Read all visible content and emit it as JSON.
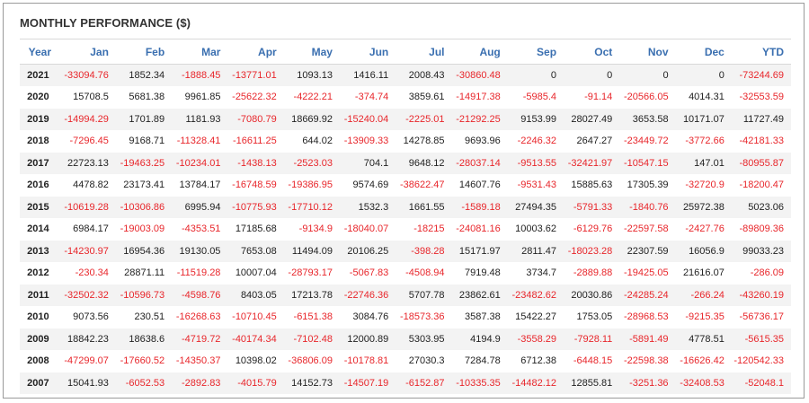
{
  "title": "MONTHLY PERFORMANCE ($)",
  "colors": {
    "header": "#3a6fb0",
    "negative": "#e8262b",
    "stripe": "#f3f3f3"
  },
  "columns": [
    "Year",
    "Jan",
    "Feb",
    "Mar",
    "Apr",
    "May",
    "Jun",
    "Jul",
    "Aug",
    "Sep",
    "Oct",
    "Nov",
    "Dec",
    "YTD"
  ],
  "rows": [
    [
      "2021",
      "-33094.76",
      "1852.34",
      "-1888.45",
      "-13771.01",
      "1093.13",
      "1416.11",
      "2008.43",
      "-30860.48",
      "0",
      "0",
      "0",
      "0",
      "-73244.69"
    ],
    [
      "2020",
      "15708.5",
      "5681.38",
      "9961.85",
      "-25622.32",
      "-4222.21",
      "-374.74",
      "3859.61",
      "-14917.38",
      "-5985.4",
      "-91.14",
      "-20566.05",
      "4014.31",
      "-32553.59"
    ],
    [
      "2019",
      "-14994.29",
      "1701.89",
      "1181.93",
      "-7080.79",
      "18669.92",
      "-15240.04",
      "-2225.01",
      "-21292.25",
      "9153.99",
      "28027.49",
      "3653.58",
      "10171.07",
      "11727.49"
    ],
    [
      "2018",
      "-7296.45",
      "9168.71",
      "-11328.41",
      "-16611.25",
      "644.02",
      "-13909.33",
      "14278.85",
      "9693.96",
      "-2246.32",
      "2647.27",
      "-23449.72",
      "-3772.66",
      "-42181.33"
    ],
    [
      "2017",
      "22723.13",
      "-19463.25",
      "-10234.01",
      "-1438.13",
      "-2523.03",
      "704.1",
      "9648.12",
      "-28037.14",
      "-9513.55",
      "-32421.97",
      "-10547.15",
      "147.01",
      "-80955.87"
    ],
    [
      "2016",
      "4478.82",
      "23173.41",
      "13784.17",
      "-16748.59",
      "-19386.95",
      "9574.69",
      "-38622.47",
      "14607.76",
      "-9531.43",
      "15885.63",
      "17305.39",
      "-32720.9",
      "-18200.47"
    ],
    [
      "2015",
      "-10619.28",
      "-10306.86",
      "6995.94",
      "-10775.93",
      "-17710.12",
      "1532.3",
      "1661.55",
      "-1589.18",
      "27494.35",
      "-5791.33",
      "-1840.76",
      "25972.38",
      "5023.06"
    ],
    [
      "2014",
      "6984.17",
      "-19003.09",
      "-4353.51",
      "17185.68",
      "-9134.9",
      "-18040.07",
      "-18215",
      "-24081.16",
      "10003.62",
      "-6129.76",
      "-22597.58",
      "-2427.76",
      "-89809.36"
    ],
    [
      "2013",
      "-14230.97",
      "16954.36",
      "19130.05",
      "7653.08",
      "11494.09",
      "20106.25",
      "-398.28",
      "15171.97",
      "2811.47",
      "-18023.28",
      "22307.59",
      "16056.9",
      "99033.23"
    ],
    [
      "2012",
      "-230.34",
      "28871.11",
      "-11519.28",
      "10007.04",
      "-28793.17",
      "-5067.83",
      "-4508.94",
      "7919.48",
      "3734.7",
      "-2889.88",
      "-19425.05",
      "21616.07",
      "-286.09"
    ],
    [
      "2011",
      "-32502.32",
      "-10596.73",
      "-4598.76",
      "8403.05",
      "17213.78",
      "-22746.36",
      "5707.78",
      "23862.61",
      "-23482.62",
      "20030.86",
      "-24285.24",
      "-266.24",
      "-43260.19"
    ],
    [
      "2010",
      "9073.56",
      "230.51",
      "-16268.63",
      "-10710.45",
      "-6151.38",
      "3084.76",
      "-18573.36",
      "3587.38",
      "15422.27",
      "1753.05",
      "-28968.53",
      "-9215.35",
      "-56736.17"
    ],
    [
      "2009",
      "18842.23",
      "18638.6",
      "-4719.72",
      "-40174.34",
      "-7102.48",
      "12000.89",
      "5303.95",
      "4194.9",
      "-3558.29",
      "-7928.11",
      "-5891.49",
      "4778.51",
      "-5615.35"
    ],
    [
      "2008",
      "-47299.07",
      "-17660.52",
      "-14350.37",
      "10398.02",
      "-36806.09",
      "-10178.81",
      "27030.3",
      "7284.78",
      "6712.38",
      "-6448.15",
      "-22598.38",
      "-16626.42",
      "-120542.33"
    ],
    [
      "2007",
      "15041.93",
      "-6052.53",
      "-2892.83",
      "-4015.79",
      "14152.73",
      "-14507.19",
      "-6152.87",
      "-10335.35",
      "-14482.12",
      "12855.81",
      "-3251.36",
      "-32408.53",
      "-52048.1"
    ]
  ]
}
